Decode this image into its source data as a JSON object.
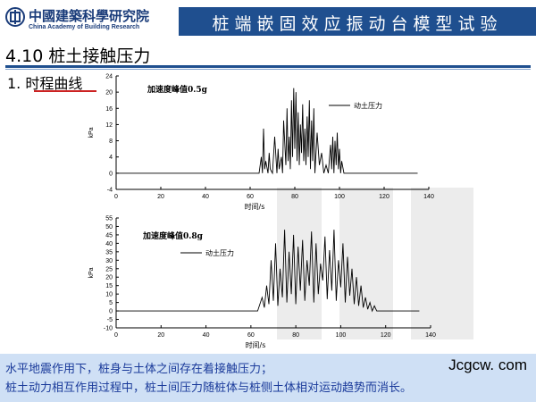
{
  "header": {
    "logo_cn": "中國建築科學研究院",
    "logo_en": "China Academy of Building Research",
    "title": "桩端嵌固效应振动台模型试验"
  },
  "section_title": "4.10 桩土接触压力",
  "sub_title": "1. 时程曲线",
  "bottom": {
    "line1": "水平地震作用下，桩身与土体之间存在着接触压力；",
    "line2": "桩土动力相互作用过程中，桩土间压力随桩体与桩侧土体相对运动趋势而消长。",
    "site": "Jcgcw. com"
  },
  "colors": {
    "header_band": "#1f4f8f",
    "bottom_box": "#cfe0f5",
    "bottom_text": "#1a3a9a",
    "accent_underline": "#cc2222"
  },
  "chart_data": [
    {
      "type": "line",
      "title": "加速度峰值0.5g",
      "xlabel": "时间/s",
      "ylabel": "kPa",
      "xlim": [
        0,
        140
      ],
      "ylim": [
        -4,
        24
      ],
      "xticks": [
        0,
        20,
        40,
        60,
        80,
        100,
        120,
        140
      ],
      "yticks": [
        -4,
        0,
        4,
        8,
        12,
        16,
        20,
        24
      ],
      "legend": "top-right",
      "grid": false,
      "series": [
        {
          "name": "动土压力",
          "x": [
            0,
            64,
            65,
            65.5,
            66,
            66.5,
            67,
            68,
            68.5,
            69,
            70,
            71,
            72,
            72.5,
            73,
            74,
            74.5,
            75,
            76,
            76.5,
            77,
            77.5,
            78,
            78.5,
            79,
            79.5,
            80,
            80.5,
            81,
            81.5,
            82,
            82.5,
            83,
            83.5,
            84,
            84.5,
            85,
            85.5,
            86,
            86.5,
            87,
            87.5,
            88,
            88.5,
            89,
            90,
            91,
            92,
            93,
            94,
            95,
            96,
            96.5,
            97,
            97.5,
            98,
            98.5,
            99,
            99.5,
            100,
            100.5,
            101,
            102,
            135
          ],
          "y": [
            0,
            0,
            4,
            0,
            11,
            1,
            3,
            0,
            5,
            1,
            0,
            9,
            0,
            6,
            1,
            4,
            0,
            13,
            2,
            16,
            3,
            9,
            1,
            18,
            4,
            21,
            6,
            20,
            3,
            15,
            2,
            12,
            5,
            17,
            3,
            11,
            2,
            14,
            4,
            18,
            1,
            13,
            3,
            16,
            0,
            10,
            2,
            5,
            0,
            2,
            0,
            7,
            1,
            9,
            0,
            8,
            2,
            10,
            1,
            6,
            0,
            3,
            0,
            0
          ]
        }
      ]
    },
    {
      "type": "line",
      "title": "加速度峰值0.8g",
      "xlabel": "时间/s",
      "ylabel": "kPa",
      "xlim": [
        0,
        140
      ],
      "ylim": [
        -10,
        55
      ],
      "xticks": [
        0,
        20,
        40,
        60,
        80,
        100,
        120,
        140
      ],
      "yticks": [
        -10,
        -5,
        0,
        5,
        10,
        15,
        20,
        25,
        30,
        35,
        40,
        45,
        50,
        55
      ],
      "legend": "top-left",
      "grid": false,
      "series": [
        {
          "name": "动土压力",
          "x": [
            0,
            63,
            65,
            66,
            67,
            68,
            69,
            70,
            71,
            72,
            73,
            74,
            75,
            76,
            77,
            78,
            79,
            80,
            81,
            82,
            83,
            84,
            85,
            86,
            87,
            88,
            89,
            90,
            91,
            92,
            93,
            94,
            95,
            96,
            97,
            98,
            99,
            100,
            101,
            102,
            103,
            104,
            105,
            106,
            107,
            108,
            109,
            110,
            111,
            112,
            113,
            114,
            115,
            116,
            135
          ],
          "y": [
            0,
            0,
            8,
            2,
            15,
            4,
            30,
            6,
            40,
            3,
            25,
            8,
            48,
            5,
            35,
            10,
            45,
            4,
            38,
            12,
            42,
            6,
            30,
            15,
            47,
            5,
            40,
            10,
            28,
            18,
            44,
            7,
            36,
            12,
            48,
            6,
            30,
            14,
            40,
            5,
            32,
            9,
            25,
            4,
            20,
            3,
            15,
            2,
            8,
            1,
            5,
            0,
            3,
            0,
            0
          ]
        }
      ]
    }
  ]
}
